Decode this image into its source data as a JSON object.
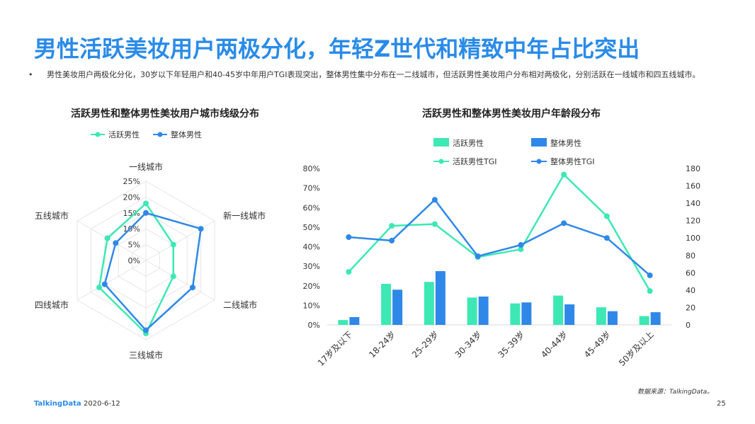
{
  "page": {
    "title": "男性活跃美妆用户两极分化，年轻Z世代和精致中年占比突出",
    "bullet_marker": "•",
    "bullet": "男性美妆用户两极化分化，30岁以下年轻用户和40-45岁中年用户TGI表现突出，整体男性集中分布在一二线城市，但活跃男性美妆用户分布相对两极化，分别活跃在一线城市和四五线城市。"
  },
  "footer": {
    "logo": "TalkingData",
    "date": "2020-6-12",
    "source": "数据来源：TalkingData。",
    "page_number": "25"
  },
  "colors": {
    "title": "#2a8be8",
    "active": "#3de8b4",
    "overall": "#2f88e8",
    "grid": "#e6e6e6"
  },
  "chart_data": [
    {
      "type": "radar",
      "title": "活跃男性和整体男性美妆用户城市线级分布",
      "categories": [
        "一线城市",
        "新一线城市",
        "二线城市",
        "三线城市",
        "四线城市",
        "五线城市"
      ],
      "scale_ticks": [
        "0%",
        "5%",
        "10%",
        "15%",
        "20%",
        "25%"
      ],
      "range": [
        0,
        25
      ],
      "legend_position": "top-left",
      "series": [
        {
          "name": "活跃男性",
          "color": "#3de8b4",
          "values": [
            18,
            10,
            10,
            23,
            17,
            14
          ]
        },
        {
          "name": "整体男性",
          "color": "#2f88e8",
          "values": [
            15,
            20,
            17,
            22,
            15,
            11
          ]
        }
      ]
    },
    {
      "type": "bar+line",
      "title": "活跃男性和整体男性美妆用户年龄段分布",
      "categories": [
        "17岁及以下",
        "18-24岁",
        "25-29岁",
        "30-34岁",
        "35-39岁",
        "40-44岁",
        "45-49岁",
        "50岁及以上"
      ],
      "left_axis": {
        "ticks": [
          "0%",
          "10%",
          "20%",
          "30%",
          "40%",
          "50%",
          "60%",
          "70%",
          "80%"
        ],
        "range": [
          0,
          80
        ]
      },
      "right_axis": {
        "ticks": [
          "0",
          "20",
          "40",
          "60",
          "80",
          "100",
          "120",
          "140",
          "160",
          "180"
        ],
        "range": [
          0,
          180
        ]
      },
      "legend_position": "top",
      "bars": [
        {
          "name": "活跃男性",
          "color": "#3de8b4",
          "values": [
            2.5,
            21,
            22,
            14,
            11,
            15,
            9,
            4.5
          ]
        },
        {
          "name": "整体男性",
          "color": "#2f88e8",
          "values": [
            4,
            18,
            27.5,
            14.5,
            11.5,
            10.5,
            7,
            6.5
          ]
        }
      ],
      "lines": [
        {
          "name": "活跃男性TGI",
          "color": "#3de8b4",
          "values": [
            61,
            114,
            116,
            78,
            87,
            173,
            125,
            39
          ]
        },
        {
          "name": "整体男性TGI",
          "color": "#2f88e8",
          "values": [
            101,
            97,
            144,
            79,
            92,
            117,
            100,
            57
          ]
        }
      ]
    }
  ]
}
